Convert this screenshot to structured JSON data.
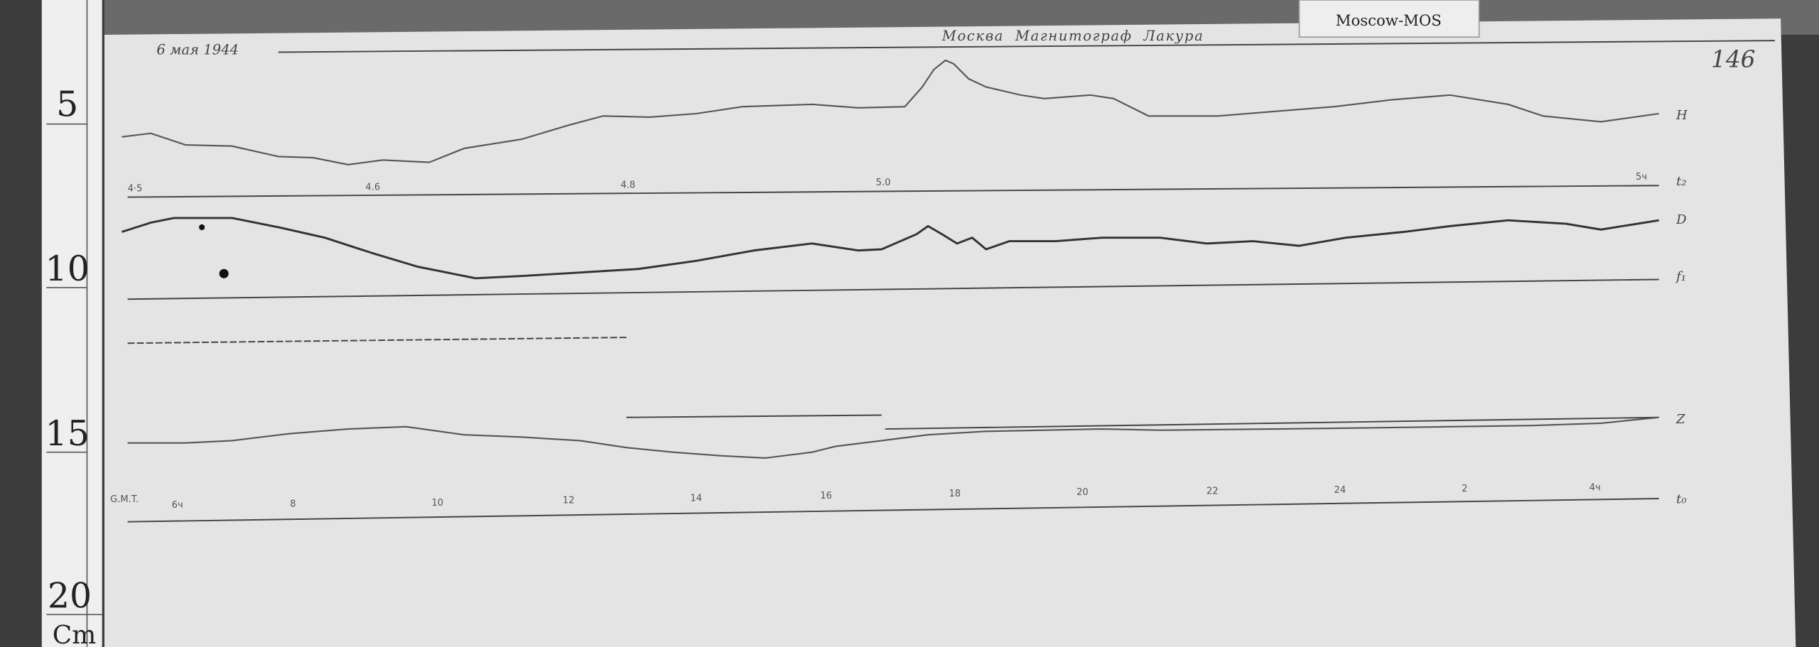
{
  "header": {
    "date": "6 мая 1944",
    "title": "Москва  Магнитограф  Лакура",
    "tag": "Moscow-MOS",
    "sheet_number": "146"
  },
  "ruler": {
    "marks": [
      "5",
      "10",
      "15",
      "20"
    ],
    "unit": "Cm"
  },
  "traces": {
    "labels": [
      "H",
      "t₂",
      "D",
      "f₁",
      "Z",
      "t₀"
    ]
  },
  "time_scale_top": [
    "4·5",
    "4.6",
    "4.8",
    "5.0",
    "5ч"
  ],
  "time_scale_bottom": {
    "caption": "G.M.T.",
    "ticks": [
      "6ч",
      "8",
      "10",
      "12",
      "14",
      "16",
      "18",
      "20",
      "22",
      "24",
      "2",
      "4ч"
    ]
  }
}
